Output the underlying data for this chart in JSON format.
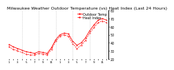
{
  "title": "Milwaukee Weather Outdoor Temperature (vs) Heat Index (Last 24 Hours)",
  "title_fontsize": 4.5,
  "background_color": "#ffffff",
  "grid_color": "#bbbbbb",
  "line_color": "#ff0000",
  "x_labels": [
    "1",
    "",
    "3",
    "",
    "5",
    "",
    "7",
    "",
    "9",
    "",
    "11",
    "",
    "1",
    "",
    "3",
    "",
    "5",
    "",
    "7",
    "",
    "9",
    "",
    "11",
    "",
    "1"
  ],
  "temp_values": [
    38,
    35,
    33,
    31,
    29,
    28,
    27,
    29,
    28,
    27,
    34,
    44,
    50,
    52,
    51,
    42,
    37,
    40,
    46,
    55,
    62,
    68,
    70,
    68
  ],
  "heat_values": [
    35,
    32,
    30,
    28,
    26,
    25,
    25,
    27,
    26,
    25,
    32,
    42,
    48,
    50,
    48,
    39,
    33,
    37,
    43,
    52,
    59,
    65,
    67,
    65
  ],
  "ylim": [
    20,
    80
  ],
  "yticks": [
    20,
    30,
    40,
    50,
    60,
    70,
    80
  ],
  "ytick_fontsize": 3.5,
  "xtick_fontsize": 3.0,
  "grid_positions": [
    3,
    7,
    11,
    15,
    19,
    23
  ],
  "legend_labels": [
    "Outdoor Temp",
    "Heat Index"
  ],
  "legend_fontsize": 3.5
}
